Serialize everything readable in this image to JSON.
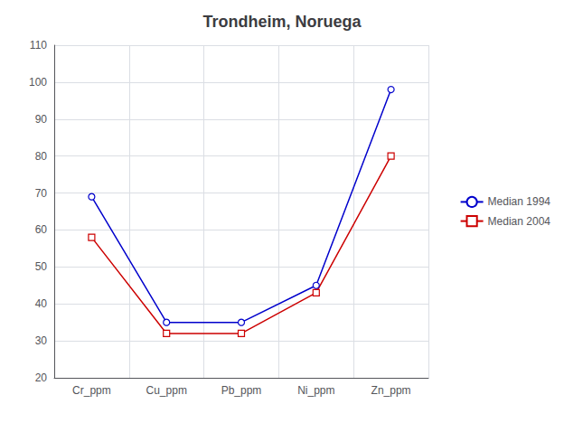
{
  "chart_data": {
    "type": "line",
    "title": "Trondheim, Noruega",
    "categories": [
      "Cr_ppm",
      "Cu_ppm",
      "Pb_ppm",
      "Ni_ppm",
      "Zn_ppm"
    ],
    "series": [
      {
        "name": "Median 1994",
        "color": "#0000CC",
        "marker": "circle",
        "values": [
          69,
          35,
          35,
          45,
          98
        ]
      },
      {
        "name": "Median 2004",
        "color": "#CC0000",
        "marker": "square",
        "values": [
          58,
          32,
          32,
          43,
          80
        ]
      }
    ],
    "ylim": [
      20,
      110
    ],
    "yticks": [
      20,
      30,
      40,
      50,
      60,
      70,
      80,
      90,
      100,
      110
    ],
    "grid": true,
    "legend": "right"
  }
}
